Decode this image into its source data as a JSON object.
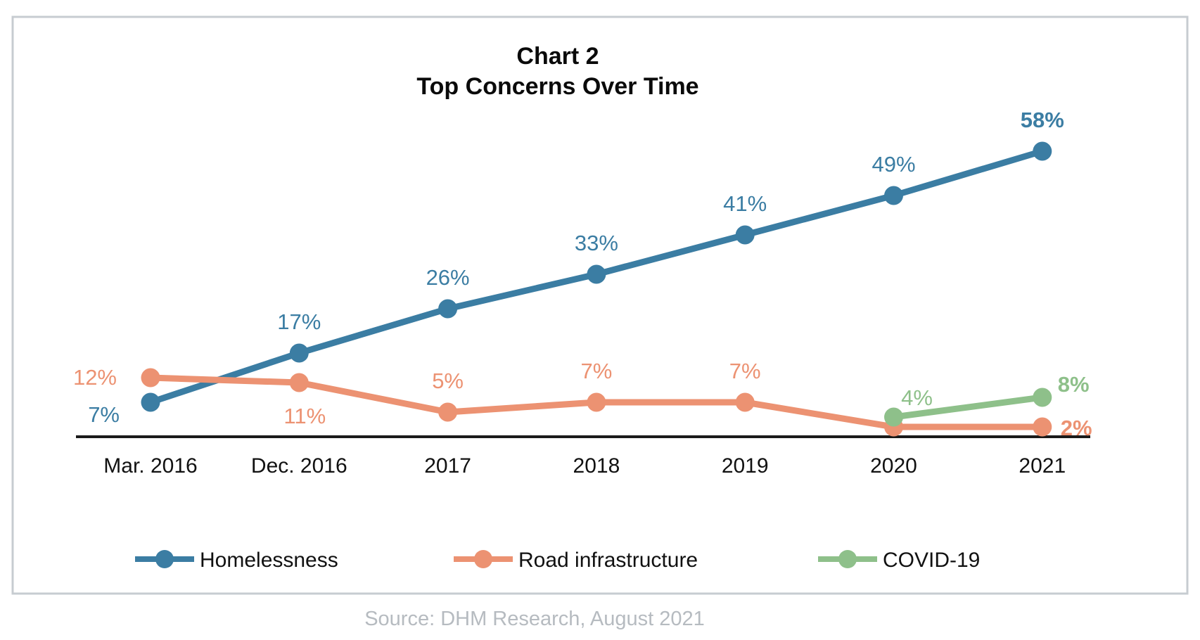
{
  "chart_data": {
    "type": "line",
    "title": "Chart 2",
    "subtitle": "Top Concerns Over Time",
    "categories": [
      "Mar. 2016",
      "Dec. 2016",
      "2017",
      "2018",
      "2019",
      "2020",
      "2021"
    ],
    "series": [
      {
        "name": "Homelessness",
        "color": "#3b7da3",
        "values": [
          7,
          17,
          26,
          33,
          41,
          49,
          58
        ],
        "point_labels": [
          "7%",
          "17%",
          "26%",
          "33%",
          "41%",
          "49%",
          "58%"
        ],
        "label_placement": [
          "left-below",
          "above",
          "above",
          "above",
          "above",
          "above",
          "above"
        ],
        "label_bold": [
          false,
          false,
          false,
          false,
          false,
          false,
          true
        ]
      },
      {
        "name": "Road infrastructure",
        "color": "#ec9272",
        "values": [
          12,
          11,
          5,
          7,
          7,
          2,
          2
        ],
        "point_labels": [
          "12%",
          "11%",
          "5%",
          "7%",
          "7%",
          "",
          "2%"
        ],
        "label_placement": [
          "left",
          "below",
          "above",
          "above",
          "above",
          "none",
          "right"
        ],
        "label_bold": [
          false,
          false,
          false,
          false,
          false,
          false,
          true
        ]
      },
      {
        "name": "COVID-19",
        "color": "#8ec08a",
        "values": [
          null,
          null,
          null,
          null,
          null,
          4,
          8
        ],
        "point_labels": [
          "",
          "",
          "",
          "",
          "",
          "4%",
          "8%"
        ],
        "label_placement": [
          "none",
          "none",
          "none",
          "none",
          "none",
          "above-right",
          "right-above"
        ],
        "label_bold": [
          false,
          false,
          false,
          false,
          false,
          false,
          true
        ]
      }
    ],
    "ylim": [
      0,
      62
    ],
    "grid": false,
    "legend_position": "bottom",
    "axis_color": "#1a1a1a",
    "text_color": "#111111",
    "frame_color": "#c7ccd1"
  },
  "footer": {
    "source": "Source: DHM Research, August 2021",
    "source_color": "#b6bbc0"
  }
}
